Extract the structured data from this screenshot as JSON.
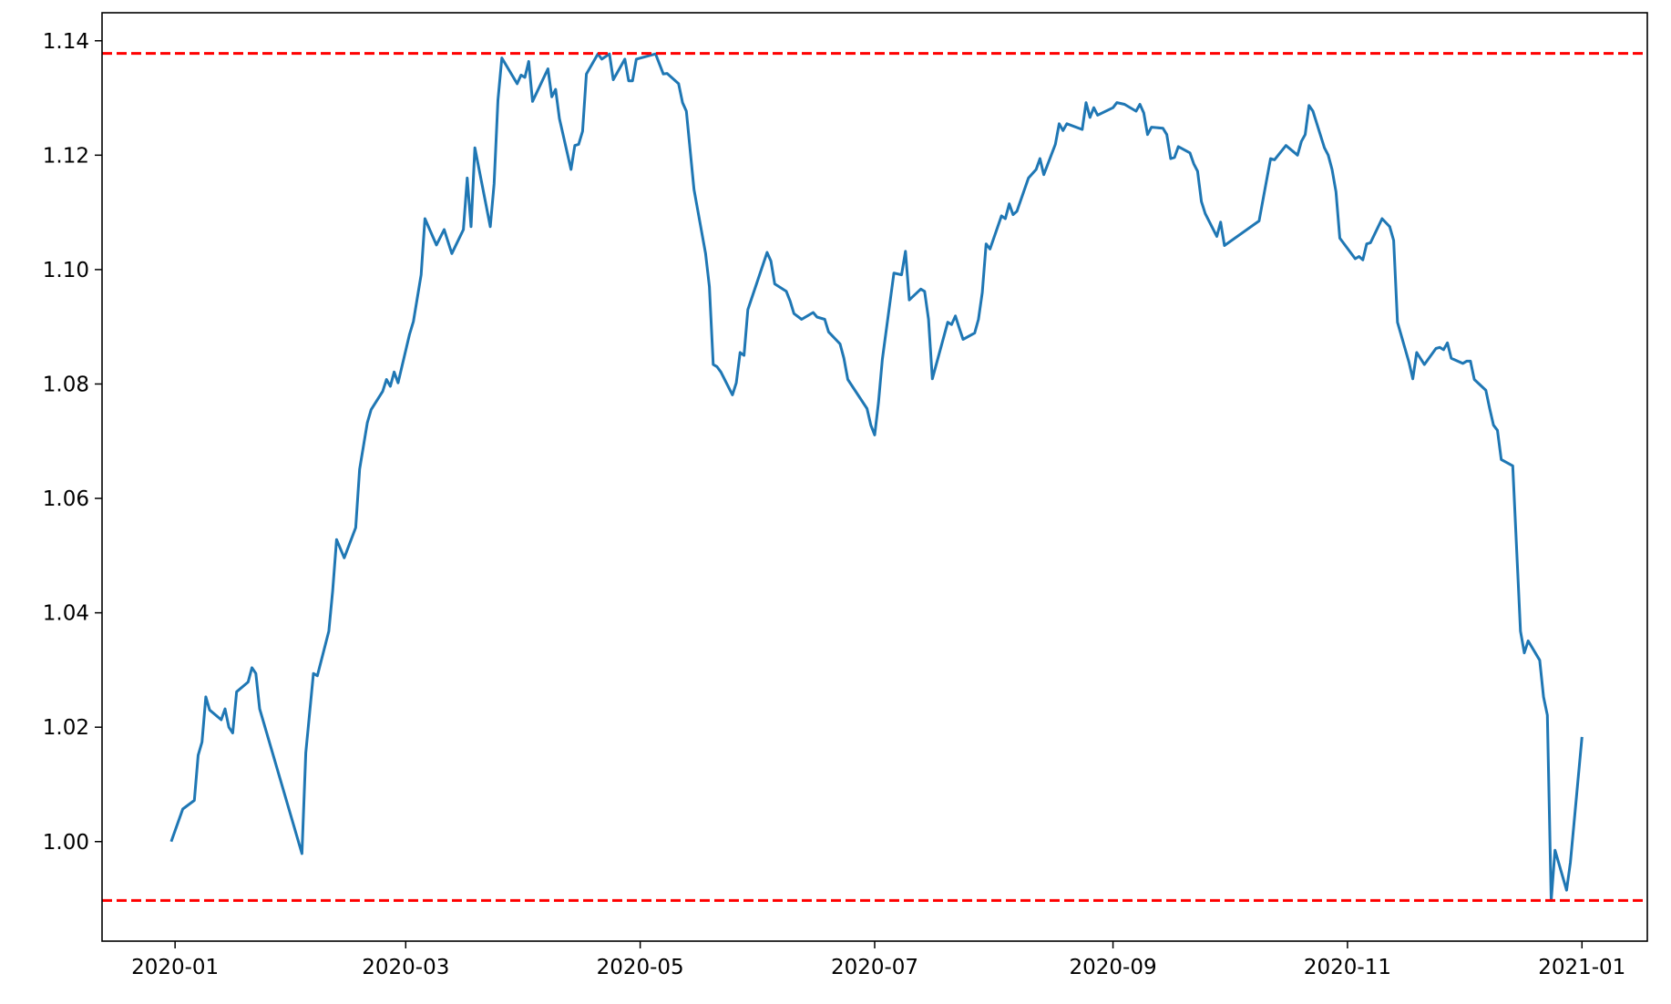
{
  "chart_data": {
    "type": "line",
    "title": "",
    "xlabel": "",
    "ylabel": "",
    "xlim": [
      "2019-12-13",
      "2021-01-18"
    ],
    "ylim": [
      0.9826,
      1.1449
    ],
    "grid": false,
    "x_ticks": [
      "2020-01",
      "2020-03",
      "2020-05",
      "2020-07",
      "2020-09",
      "2020-11",
      "2021-01"
    ],
    "y_ticks": [
      "1.00",
      "1.02",
      "1.04",
      "1.06",
      "1.08",
      "1.10",
      "1.12",
      "1.14"
    ],
    "series": [
      {
        "color": "#1f77b4",
        "x": [
          "2019-12-31",
          "2020-01-03",
          "2020-01-06",
          "2020-01-07",
          "2020-01-08",
          "2020-01-09",
          "2020-01-10",
          "2020-01-13",
          "2020-01-14",
          "2020-01-15",
          "2020-01-16",
          "2020-01-17",
          "2020-01-20",
          "2020-01-21",
          "2020-01-22",
          "2020-01-23",
          "2020-02-03",
          "2020-02-04",
          "2020-02-06",
          "2020-02-07",
          "2020-02-10",
          "2020-02-11",
          "2020-02-12",
          "2020-02-14",
          "2020-02-17",
          "2020-02-18",
          "2020-02-20",
          "2020-02-21",
          "2020-02-24",
          "2020-02-25",
          "2020-02-26",
          "2020-02-27",
          "2020-02-28",
          "2020-03-02",
          "2020-03-03",
          "2020-03-05",
          "2020-03-06",
          "2020-03-09",
          "2020-03-11",
          "2020-03-13",
          "2020-03-16",
          "2020-03-17",
          "2020-03-18",
          "2020-03-19",
          "2020-03-23",
          "2020-03-24",
          "2020-03-25",
          "2020-03-26",
          "2020-03-30",
          "2020-03-31",
          "2020-04-01",
          "2020-04-02",
          "2020-04-03",
          "2020-04-07",
          "2020-04-08",
          "2020-04-09",
          "2020-04-10",
          "2020-04-13",
          "2020-04-14",
          "2020-04-15",
          "2020-04-16",
          "2020-04-17",
          "2020-04-20",
          "2020-04-21",
          "2020-04-23",
          "2020-04-24",
          "2020-04-27",
          "2020-04-28",
          "2020-04-29",
          "2020-04-30",
          "2020-05-05",
          "2020-05-07",
          "2020-05-08",
          "2020-05-11",
          "2020-05-12",
          "2020-05-13",
          "2020-05-15",
          "2020-05-18",
          "2020-05-19",
          "2020-05-20",
          "2020-05-21",
          "2020-05-22",
          "2020-05-25",
          "2020-05-26",
          "2020-05-27",
          "2020-05-28",
          "2020-05-29",
          "2020-06-03",
          "2020-06-04",
          "2020-06-05",
          "2020-06-08",
          "2020-06-09",
          "2020-06-10",
          "2020-06-12",
          "2020-06-15",
          "2020-06-16",
          "2020-06-18",
          "2020-06-19",
          "2020-06-22",
          "2020-06-23",
          "2020-06-24",
          "2020-06-29",
          "2020-06-30",
          "2020-07-01",
          "2020-07-02",
          "2020-07-03",
          "2020-07-06",
          "2020-07-08",
          "2020-07-09",
          "2020-07-10",
          "2020-07-13",
          "2020-07-14",
          "2020-07-15",
          "2020-07-16",
          "2020-07-20",
          "2020-07-21",
          "2020-07-22",
          "2020-07-23",
          "2020-07-24",
          "2020-07-27",
          "2020-07-28",
          "2020-07-29",
          "2020-07-30",
          "2020-07-31",
          "2020-08-03",
          "2020-08-04",
          "2020-08-05",
          "2020-08-06",
          "2020-08-07",
          "2020-08-10",
          "2020-08-12",
          "2020-08-13",
          "2020-08-14",
          "2020-08-17",
          "2020-08-18",
          "2020-08-19",
          "2020-08-20",
          "2020-08-24",
          "2020-08-25",
          "2020-08-26",
          "2020-08-27",
          "2020-08-28",
          "2020-09-01",
          "2020-09-02",
          "2020-09-04",
          "2020-09-07",
          "2020-09-08",
          "2020-09-09",
          "2020-09-10",
          "2020-09-11",
          "2020-09-14",
          "2020-09-15",
          "2020-09-16",
          "2020-09-17",
          "2020-09-18",
          "2020-09-21",
          "2020-09-22",
          "2020-09-23",
          "2020-09-24",
          "2020-09-25",
          "2020-09-28",
          "2020-09-29",
          "2020-09-30",
          "2020-10-09",
          "2020-10-12",
          "2020-10-13",
          "2020-10-16",
          "2020-10-19",
          "2020-10-20",
          "2020-10-21",
          "2020-10-22",
          "2020-10-23",
          "2020-10-26",
          "2020-10-27",
          "2020-10-28",
          "2020-10-29",
          "2020-10-30",
          "2020-11-03",
          "2020-11-04",
          "2020-11-05",
          "2020-11-06",
          "2020-11-07",
          "2020-11-10",
          "2020-11-12",
          "2020-11-13",
          "2020-11-14",
          "2020-11-17",
          "2020-11-18",
          "2020-11-19",
          "2020-11-21",
          "2020-11-24",
          "2020-11-25",
          "2020-11-26",
          "2020-11-27",
          "2020-11-28",
          "2020-12-01",
          "2020-12-02",
          "2020-12-03",
          "2020-12-04",
          "2020-12-07",
          "2020-12-08",
          "2020-12-09",
          "2020-12-10",
          "2020-12-11",
          "2020-12-14",
          "2020-12-16",
          "2020-12-17",
          "2020-12-18",
          "2020-12-21",
          "2020-12-22",
          "2020-12-23",
          "2020-12-24",
          "2020-12-25",
          "2020-12-28",
          "2020-12-29",
          "2021-01-01"
        ],
        "y": [
          1.0,
          1.0057,
          1.0072,
          1.0151,
          1.0174,
          1.0253,
          1.023,
          1.0213,
          1.0232,
          1.02,
          1.019,
          1.0262,
          1.0279,
          1.0304,
          1.0294,
          1.0232,
          0.9979,
          1.0155,
          1.0294,
          1.029,
          1.0368,
          1.0438,
          1.0528,
          1.0496,
          1.0549,
          1.0651,
          1.0732,
          1.0755,
          1.0787,
          1.0808,
          1.0796,
          1.0821,
          1.0802,
          1.0887,
          1.0909,
          1.0991,
          1.1089,
          1.1043,
          1.107,
          1.1028,
          1.107,
          1.116,
          1.1075,
          1.1213,
          1.1075,
          1.115,
          1.1296,
          1.137,
          1.1325,
          1.134,
          1.1336,
          1.1364,
          1.1294,
          1.1351,
          1.1302,
          1.1315,
          1.1264,
          1.1175,
          1.1217,
          1.1219,
          1.1242,
          1.1342,
          1.1377,
          1.1368,
          1.1377,
          1.1332,
          1.1368,
          1.133,
          1.133,
          1.1368,
          1.1377,
          1.1342,
          1.1343,
          1.1325,
          1.1292,
          1.1277,
          1.114,
          1.1028,
          1.097,
          1.0834,
          1.083,
          1.0821,
          1.0781,
          1.0802,
          1.0855,
          1.085,
          1.093,
          1.103,
          1.1015,
          1.0975,
          1.0962,
          1.0945,
          1.0923,
          1.0913,
          1.0925,
          1.0917,
          1.0913,
          1.0891,
          1.087,
          1.0845,
          1.0808,
          1.0757,
          1.0728,
          1.0711,
          1.0768,
          1.0843,
          1.0994,
          1.0991,
          1.1032,
          1.0947,
          1.0966,
          1.0962,
          1.0913,
          1.0809,
          1.0908,
          1.0904,
          1.0919,
          1.0898,
          1.0878,
          1.0889,
          1.0913,
          1.096,
          1.1045,
          1.1036,
          1.1094,
          1.1089,
          1.1115,
          1.1096,
          1.1102,
          1.116,
          1.1175,
          1.1194,
          1.1166,
          1.1219,
          1.1255,
          1.1243,
          1.1255,
          1.1245,
          1.1292,
          1.1266,
          1.1283,
          1.127,
          1.1283,
          1.1292,
          1.1289,
          1.1277,
          1.1289,
          1.1274,
          1.1236,
          1.1249,
          1.1247,
          1.1236,
          1.1194,
          1.1196,
          1.1215,
          1.1204,
          1.1185,
          1.1172,
          1.1119,
          1.1098,
          1.1058,
          1.1083,
          1.1042,
          1.1085,
          1.1194,
          1.1192,
          1.1217,
          1.12,
          1.1224,
          1.1236,
          1.1287,
          1.1277,
          1.1213,
          1.12,
          1.1175,
          1.1136,
          1.1055,
          1.1019,
          1.1023,
          1.1017,
          1.1045,
          1.1047,
          1.1089,
          1.1075,
          1.1051,
          1.0908,
          1.0838,
          1.0809,
          1.0855,
          1.0834,
          1.0862,
          1.0864,
          1.086,
          1.0872,
          1.0845,
          1.0836,
          1.084,
          1.084,
          1.0808,
          1.0789,
          1.0757,
          1.0728,
          1.0719,
          1.0668,
          1.0657,
          1.0368,
          1.033,
          1.0351,
          1.0317,
          1.0253,
          1.0221,
          0.9897,
          0.9985,
          0.9915,
          0.9964,
          1.0183
        ]
      }
    ],
    "hlines": [
      {
        "y": 1.1378,
        "color": "#ff0000",
        "style": "dashed"
      },
      {
        "y": 0.9897,
        "color": "#ff0000",
        "style": "dashed"
      }
    ]
  }
}
